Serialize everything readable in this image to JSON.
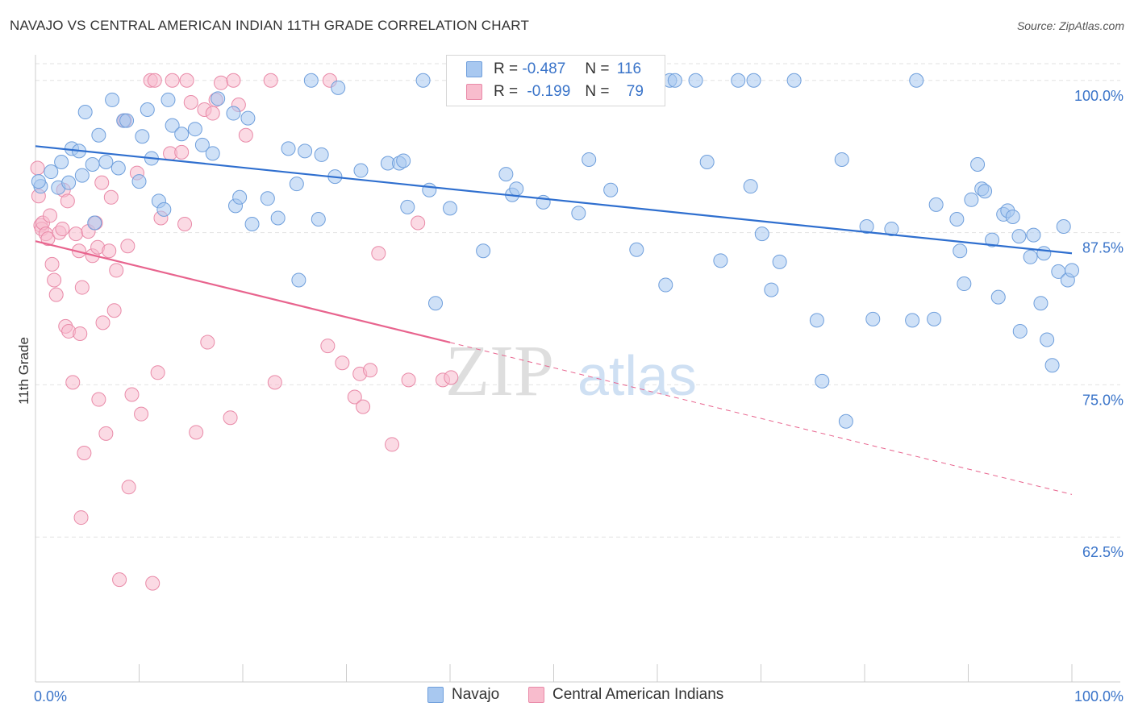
{
  "title": "NAVAJO VS CENTRAL AMERICAN INDIAN 11TH GRADE CORRELATION CHART",
  "source": "Source: ZipAtlas.com",
  "watermark": {
    "zip": "ZIP",
    "atlas": "atlas"
  },
  "legend": {
    "rows": [
      {
        "r_label": "R =",
        "r_value": "-0.487",
        "n_label": "N =",
        "n_value": "116"
      },
      {
        "r_label": "R =",
        "r_value": "-0.199",
        "n_label": "N =",
        "n_value": "79"
      }
    ]
  },
  "colors": {
    "navajo_fill": "#a8c8f0",
    "navajo_stroke": "#6f9fdc",
    "navajo_line": "#2f6fcf",
    "cai_fill": "#f8bccd",
    "cai_stroke": "#e98aa8",
    "cai_line": "#e8648e",
    "axis_text": "#3a74c9",
    "grid": "#e2e2e2"
  },
  "chart_data": {
    "type": "scatter",
    "title": "NAVAJO VS CENTRAL AMERICAN INDIAN 11TH GRADE CORRELATION CHART",
    "ylabel": "11th Grade",
    "xlabel": "",
    "xlim": [
      0,
      100
    ],
    "ylim": [
      50.6,
      102.5
    ],
    "x_tick_labels": [
      {
        "value": 0,
        "label": "0.0%"
      },
      {
        "value": 100,
        "label": "100.0%"
      }
    ],
    "y_ticks": [
      {
        "value": 100,
        "label": "100.0%"
      },
      {
        "value": 87.5,
        "label": "87.5%"
      },
      {
        "value": 75,
        "label": "75.0%"
      },
      {
        "value": 62.5,
        "label": "62.5%"
      }
    ],
    "grid": true,
    "legend_placement": "bottom-center",
    "series": [
      {
        "name": "Navajo",
        "trend": {
          "x": [
            0,
            100
          ],
          "y": [
            94.6,
            85.8
          ],
          "dashed_after": null
        },
        "points": [
          [
            0.5,
            91.3
          ],
          [
            1.5,
            92.5
          ],
          [
            2.2,
            91.2
          ],
          [
            2.5,
            93.3
          ],
          [
            3.2,
            91.6
          ],
          [
            3.5,
            94.4
          ],
          [
            4.2,
            94.2
          ],
          [
            4.5,
            92.2
          ],
          [
            4.8,
            97.4
          ],
          [
            5.5,
            93.1
          ],
          [
            5.7,
            88.3
          ],
          [
            6.1,
            95.5
          ],
          [
            6.8,
            93.3
          ],
          [
            7.4,
            98.4
          ],
          [
            8.0,
            92.8
          ],
          [
            8.5,
            96.7
          ],
          [
            8.8,
            96.7
          ],
          [
            10.0,
            91.7
          ],
          [
            10.3,
            95.4
          ],
          [
            10.8,
            97.6
          ],
          [
            11.2,
            93.6
          ],
          [
            11.9,
            90.1
          ],
          [
            12.4,
            89.4
          ],
          [
            12.8,
            98.4
          ],
          [
            13.2,
            96.3
          ],
          [
            14.1,
            95.6
          ],
          [
            15.4,
            96.0
          ],
          [
            16.1,
            94.7
          ],
          [
            17.1,
            94.0
          ],
          [
            17.6,
            98.5
          ],
          [
            19.1,
            97.3
          ],
          [
            19.3,
            89.7
          ],
          [
            19.7,
            90.4
          ],
          [
            20.5,
            96.9
          ],
          [
            20.9,
            88.2
          ],
          [
            22.4,
            90.3
          ],
          [
            23.4,
            88.7
          ],
          [
            24.4,
            94.4
          ],
          [
            25.2,
            91.5
          ],
          [
            25.4,
            83.6
          ],
          [
            26.0,
            94.2
          ],
          [
            26.6,
            100.0
          ],
          [
            27.3,
            88.6
          ],
          [
            27.6,
            93.9
          ],
          [
            28.9,
            92.1
          ],
          [
            29.2,
            99.4
          ],
          [
            31.4,
            92.6
          ],
          [
            34.0,
            93.2
          ],
          [
            35.1,
            93.2
          ],
          [
            35.5,
            93.4
          ],
          [
            35.9,
            89.6
          ],
          [
            37.4,
            100.0
          ],
          [
            38.0,
            91.0
          ],
          [
            38.6,
            81.7
          ],
          [
            40.0,
            89.5
          ],
          [
            40.7,
            100.0
          ],
          [
            43.2,
            86.0
          ],
          [
            45.4,
            92.3
          ],
          [
            46.0,
            90.6
          ],
          [
            46.4,
            91.1
          ],
          [
            49.0,
            90.0
          ],
          [
            52.4,
            89.1
          ],
          [
            53.1,
            100.0
          ],
          [
            53.4,
            93.5
          ],
          [
            55.5,
            91.0
          ],
          [
            58.0,
            86.1
          ],
          [
            60.8,
            83.2
          ],
          [
            61.2,
            100.0
          ],
          [
            61.7,
            100.0
          ],
          [
            63.7,
            100.0
          ],
          [
            64.8,
            93.3
          ],
          [
            66.1,
            85.2
          ],
          [
            67.8,
            100.0
          ],
          [
            69.0,
            91.3
          ],
          [
            69.3,
            100.0
          ],
          [
            70.1,
            87.4
          ],
          [
            71.0,
            82.8
          ],
          [
            71.8,
            85.1
          ],
          [
            73.2,
            100.0
          ],
          [
            75.4,
            80.3
          ],
          [
            75.9,
            75.3
          ],
          [
            77.8,
            93.5
          ],
          [
            78.2,
            72.0
          ],
          [
            80.2,
            88.0
          ],
          [
            80.8,
            80.4
          ],
          [
            82.6,
            87.8
          ],
          [
            84.6,
            80.3
          ],
          [
            85.0,
            100.0
          ],
          [
            86.7,
            80.4
          ],
          [
            86.9,
            89.8
          ],
          [
            88.9,
            88.6
          ],
          [
            89.2,
            86.0
          ],
          [
            89.6,
            83.3
          ],
          [
            90.3,
            90.2
          ],
          [
            90.9,
            93.1
          ],
          [
            91.3,
            91.1
          ],
          [
            91.6,
            90.9
          ],
          [
            92.3,
            86.9
          ],
          [
            92.9,
            82.2
          ],
          [
            93.4,
            89.0
          ],
          [
            93.8,
            89.3
          ],
          [
            94.3,
            88.8
          ],
          [
            94.9,
            87.2
          ],
          [
            95.0,
            79.4
          ],
          [
            96.0,
            85.5
          ],
          [
            96.3,
            87.3
          ],
          [
            97.0,
            81.7
          ],
          [
            97.3,
            85.8
          ],
          [
            97.6,
            78.7
          ],
          [
            98.1,
            76.6
          ],
          [
            98.7,
            84.3
          ],
          [
            99.2,
            88.0
          ],
          [
            99.6,
            83.6
          ],
          [
            100.0,
            84.4
          ],
          [
            0.3,
            91.7
          ]
        ]
      },
      {
        "name": "Central American Indians",
        "trend": {
          "x": [
            0,
            100
          ],
          "y": [
            86.8,
            66.0
          ],
          "dashed_after": 40
        },
        "points": [
          [
            0.5,
            88.1
          ],
          [
            0.6,
            87.8
          ],
          [
            0.7,
            88.3
          ],
          [
            1.0,
            87.4
          ],
          [
            1.2,
            87.0
          ],
          [
            1.4,
            88.9
          ],
          [
            1.6,
            84.9
          ],
          [
            1.8,
            83.6
          ],
          [
            2.0,
            82.4
          ],
          [
            2.3,
            87.5
          ],
          [
            2.6,
            87.8
          ],
          [
            2.7,
            91.0
          ],
          [
            2.9,
            79.8
          ],
          [
            3.1,
            90.1
          ],
          [
            3.2,
            79.4
          ],
          [
            3.6,
            75.2
          ],
          [
            3.9,
            87.4
          ],
          [
            4.2,
            86.0
          ],
          [
            4.3,
            79.2
          ],
          [
            4.4,
            64.1
          ],
          [
            4.5,
            83.0
          ],
          [
            4.7,
            69.4
          ],
          [
            5.1,
            87.6
          ],
          [
            5.5,
            85.6
          ],
          [
            5.8,
            88.3
          ],
          [
            6.0,
            86.3
          ],
          [
            6.1,
            73.8
          ],
          [
            6.4,
            91.6
          ],
          [
            6.5,
            80.1
          ],
          [
            6.8,
            71.0
          ],
          [
            7.1,
            86.0
          ],
          [
            7.3,
            90.4
          ],
          [
            7.6,
            81.1
          ],
          [
            7.8,
            84.4
          ],
          [
            8.1,
            59.0
          ],
          [
            8.6,
            96.7
          ],
          [
            8.9,
            86.4
          ],
          [
            9.0,
            66.6
          ],
          [
            9.3,
            74.2
          ],
          [
            9.8,
            92.4
          ],
          [
            10.2,
            72.6
          ],
          [
            11.1,
            100.0
          ],
          [
            11.3,
            58.7
          ],
          [
            11.5,
            100.0
          ],
          [
            11.8,
            76.0
          ],
          [
            12.1,
            88.7
          ],
          [
            13.0,
            94.0
          ],
          [
            13.2,
            100.0
          ],
          [
            14.1,
            94.1
          ],
          [
            14.4,
            88.2
          ],
          [
            14.6,
            100.0
          ],
          [
            15.0,
            98.2
          ],
          [
            15.5,
            71.1
          ],
          [
            16.3,
            97.6
          ],
          [
            16.6,
            78.5
          ],
          [
            17.1,
            97.3
          ],
          [
            17.4,
            98.4
          ],
          [
            17.9,
            99.8
          ],
          [
            18.8,
            72.3
          ],
          [
            19.1,
            100.0
          ],
          [
            19.6,
            98.0
          ],
          [
            20.3,
            95.5
          ],
          [
            22.7,
            100.0
          ],
          [
            23.1,
            75.2
          ],
          [
            28.2,
            78.2
          ],
          [
            28.4,
            100.0
          ],
          [
            29.6,
            76.8
          ],
          [
            30.8,
            74.0
          ],
          [
            31.3,
            75.9
          ],
          [
            31.6,
            73.2
          ],
          [
            32.3,
            76.2
          ],
          [
            33.1,
            85.8
          ],
          [
            34.4,
            70.1
          ],
          [
            36.0,
            75.4
          ],
          [
            36.9,
            88.3
          ],
          [
            39.3,
            75.4
          ],
          [
            40.1,
            75.6
          ],
          [
            0.2,
            92.8
          ],
          [
            0.3,
            90.5
          ]
        ]
      }
    ]
  },
  "bottom_legend": [
    {
      "label": "Navajo"
    },
    {
      "label": "Central American Indians"
    }
  ]
}
